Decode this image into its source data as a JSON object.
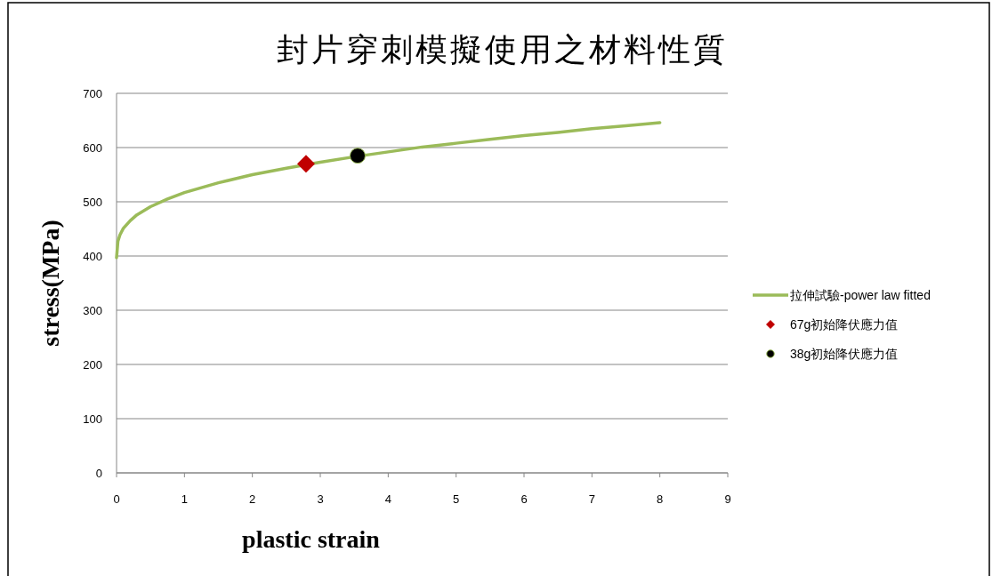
{
  "chart_data": {
    "type": "line",
    "title": "封片穿刺模擬使用之材料性質",
    "xlabel": "plastic strain",
    "ylabel": "stress(MPa)",
    "xlim": [
      0,
      9
    ],
    "ylim": [
      0,
      700
    ],
    "xticks": [
      0,
      1,
      2,
      3,
      4,
      5,
      6,
      7,
      8,
      9
    ],
    "yticks": [
      0,
      100,
      200,
      300,
      400,
      500,
      600,
      700
    ],
    "grid": "y",
    "legend": "right",
    "series": [
      {
        "name": "拉伸試驗-power law fitted",
        "color": "#9bbb59",
        "marker": "none",
        "x": [
          0,
          0.02,
          0.05,
          0.1,
          0.2,
          0.3,
          0.5,
          0.75,
          1,
          1.5,
          2,
          2.5,
          3,
          3.5,
          4,
          4.5,
          5,
          5.5,
          6,
          6.5,
          7,
          7.5,
          8
        ],
        "values": [
          397,
          427,
          439,
          451,
          465,
          476,
          491,
          505,
          517,
          535,
          550,
          562,
          573,
          583,
          592,
          601,
          608,
          615,
          622,
          628,
          635,
          640,
          646
        ]
      },
      {
        "name": "67g初始降伏應力值",
        "type": "scatter",
        "color": "#c00000",
        "marker": "diamond",
        "x": [
          2.79
        ],
        "values": [
          570
        ]
      },
      {
        "name": "38g初始降伏應力值",
        "type": "scatter",
        "color": "#000000",
        "marker": "circle",
        "x": [
          3.55
        ],
        "values": [
          585
        ]
      }
    ]
  }
}
